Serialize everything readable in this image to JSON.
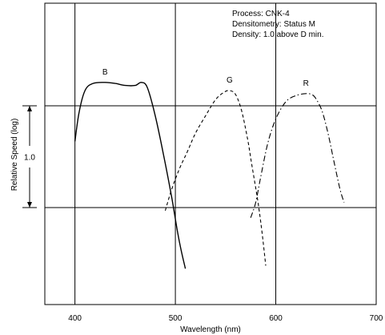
{
  "chart_data": {
    "type": "line",
    "title": "",
    "xlabel": "Wavelength (nm)",
    "ylabel": "Relative Speed (log)",
    "xlim": [
      370,
      700
    ],
    "x_ticks": [
      400,
      500,
      600,
      700
    ],
    "grid": true,
    "annotations": [
      "Process: CNK-4",
      "Densitometry: Status M",
      "Density: 1.0 above D min."
    ],
    "scale_bar": {
      "label": "1.0",
      "from_rel": -1.0,
      "to_rel": 0.0
    },
    "series": [
      {
        "name": "B",
        "line_style": "solid",
        "x": [
          400,
          404,
          410,
          418,
          430,
          440,
          450,
          460,
          466,
          472,
          480,
          488,
          496,
          502,
          506,
          510
        ],
        "rel_log_speed": [
          -0.35,
          -0.07,
          0.15,
          0.22,
          0.23,
          0.22,
          0.2,
          0.2,
          0.23,
          0.18,
          -0.1,
          -0.47,
          -0.88,
          -1.23,
          -1.43,
          -1.6
        ]
      },
      {
        "name": "G",
        "line_style": "dashed",
        "x": [
          490,
          496,
          504,
          512,
          520,
          530,
          540,
          548,
          554,
          560,
          566,
          572,
          576,
          582,
          586,
          590
        ],
        "rel_log_speed": [
          -1.03,
          -0.83,
          -0.62,
          -0.45,
          -0.27,
          -0.1,
          0.06,
          0.13,
          0.15,
          0.11,
          -0.05,
          -0.33,
          -0.57,
          -0.93,
          -1.22,
          -1.57
        ]
      },
      {
        "name": "R",
        "line_style": "dash-dot",
        "x": [
          575,
          580,
          585,
          592,
          600,
          610,
          620,
          630,
          636,
          640,
          646,
          652,
          658,
          664,
          668
        ],
        "rel_log_speed": [
          -1.1,
          -0.95,
          -0.7,
          -0.37,
          -0.13,
          0.04,
          0.1,
          0.12,
          0.11,
          0.07,
          -0.05,
          -0.27,
          -0.55,
          -0.82,
          -0.95
        ]
      }
    ]
  }
}
